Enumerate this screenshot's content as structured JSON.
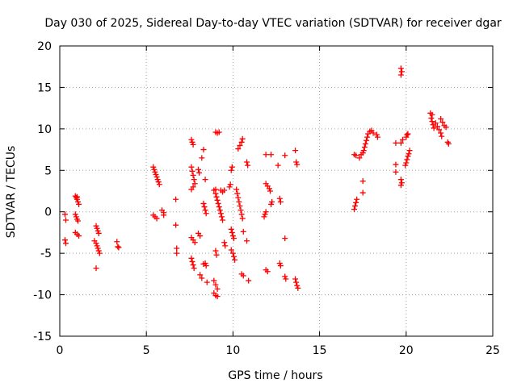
{
  "chart_data": {
    "type": "scatter",
    "title": "Day 030 of 2025, Sidereal Day-to-day VTEC variation (SDTVAR) for receiver dgar",
    "xlabel": "GPS time / hours",
    "ylabel": "SDTVAR / TECUs",
    "xlim": [
      0,
      25
    ],
    "ylim": [
      -15,
      20
    ],
    "xticks": [
      0,
      5,
      10,
      15,
      20,
      25
    ],
    "yticks": [
      -15,
      -10,
      -5,
      0,
      5,
      10,
      15,
      20
    ],
    "xtick_labels": [
      "0",
      "5",
      "10",
      "15",
      "20",
      "25"
    ],
    "ytick_labels": [
      "-15",
      "-10",
      "-5",
      "0",
      "5",
      "10",
      "15",
      "20"
    ],
    "grid": true,
    "marker": "+",
    "color": "#ff0000",
    "series": [
      {
        "name": "SDTVAR",
        "points": [
          [
            0.3,
            -0.3
          ],
          [
            0.35,
            -1.0
          ],
          [
            0.3,
            -3.4
          ],
          [
            0.35,
            -3.8
          ],
          [
            0.9,
            1.9
          ],
          [
            0.95,
            1.7
          ],
          [
            1.0,
            1.5
          ],
          [
            1.05,
            1.2
          ],
          [
            1.1,
            0.9
          ],
          [
            1.0,
            1.8
          ],
          [
            0.9,
            -0.3
          ],
          [
            0.95,
            -0.6
          ],
          [
            1.0,
            -0.9
          ],
          [
            1.05,
            -1.1
          ],
          [
            0.9,
            -2.5
          ],
          [
            1.0,
            -2.7
          ],
          [
            1.1,
            -2.9
          ],
          [
            2.1,
            -1.7
          ],
          [
            2.15,
            -2.0
          ],
          [
            2.2,
            -2.3
          ],
          [
            2.25,
            -2.6
          ],
          [
            2.0,
            -3.5
          ],
          [
            2.1,
            -3.8
          ],
          [
            2.15,
            -4.1
          ],
          [
            2.2,
            -4.4
          ],
          [
            2.25,
            -4.7
          ],
          [
            2.3,
            -5.0
          ],
          [
            2.1,
            -6.8
          ],
          [
            3.3,
            -3.6
          ],
          [
            3.35,
            -4.2
          ],
          [
            3.4,
            -4.3
          ],
          [
            5.4,
            5.4
          ],
          [
            5.45,
            5.1
          ],
          [
            5.5,
            4.8
          ],
          [
            5.55,
            4.5
          ],
          [
            5.6,
            4.2
          ],
          [
            5.65,
            3.9
          ],
          [
            5.7,
            3.6
          ],
          [
            5.75,
            3.3
          ],
          [
            5.4,
            -0.4
          ],
          [
            5.5,
            -0.6
          ],
          [
            5.6,
            -0.8
          ],
          [
            5.9,
            0.2
          ],
          [
            6.0,
            -0.1
          ],
          [
            6.0,
            -0.4
          ],
          [
            6.7,
            1.5
          ],
          [
            6.7,
            -1.6
          ],
          [
            6.75,
            -4.4
          ],
          [
            6.75,
            -5.0
          ],
          [
            7.6,
            8.7
          ],
          [
            7.65,
            8.4
          ],
          [
            7.7,
            8.1
          ],
          [
            7.6,
            5.4
          ],
          [
            7.65,
            4.9
          ],
          [
            7.7,
            4.4
          ],
          [
            7.75,
            3.9
          ],
          [
            7.8,
            3.4
          ],
          [
            7.7,
            3.0
          ],
          [
            7.6,
            2.7
          ],
          [
            7.6,
            -3.1
          ],
          [
            7.7,
            -3.4
          ],
          [
            7.8,
            -3.7
          ],
          [
            7.6,
            -5.6
          ],
          [
            7.65,
            -6.0
          ],
          [
            7.7,
            -6.4
          ],
          [
            7.75,
            -6.8
          ],
          [
            8.0,
            5.1
          ],
          [
            8.05,
            4.7
          ],
          [
            8.0,
            -2.6
          ],
          [
            8.1,
            -2.9
          ],
          [
            8.1,
            -7.6
          ],
          [
            8.2,
            -8.0
          ],
          [
            8.2,
            6.5
          ],
          [
            8.3,
            7.5
          ],
          [
            8.4,
            3.9
          ],
          [
            8.3,
            1.0
          ],
          [
            8.35,
            0.6
          ],
          [
            8.4,
            0.2
          ],
          [
            8.45,
            -0.2
          ],
          [
            8.4,
            -6.2
          ],
          [
            8.45,
            -6.5
          ],
          [
            8.5,
            -8.5
          ],
          [
            8.3,
            -6.3
          ],
          [
            9.0,
            9.6
          ],
          [
            9.1,
            9.5
          ],
          [
            9.2,
            9.6
          ],
          [
            8.9,
            2.6
          ],
          [
            9.0,
            2.2
          ],
          [
            9.05,
            1.8
          ],
          [
            9.1,
            1.4
          ],
          [
            9.15,
            1.0
          ],
          [
            9.2,
            0.6
          ],
          [
            9.25,
            0.2
          ],
          [
            9.3,
            -0.2
          ],
          [
            9.35,
            -0.6
          ],
          [
            9.4,
            -1.0
          ],
          [
            9.0,
            2.7
          ],
          [
            9.3,
            2.6
          ],
          [
            9.4,
            2.4
          ],
          [
            9.5,
            2.6
          ],
          [
            9.0,
            -4.7
          ],
          [
            9.05,
            -5.2
          ],
          [
            8.9,
            -8.3
          ],
          [
            9.0,
            -8.8
          ],
          [
            9.1,
            -9.3
          ],
          [
            8.9,
            -9.8
          ],
          [
            9.0,
            -10.1
          ],
          [
            9.1,
            -10.2
          ],
          [
            9.5,
            -3.7
          ],
          [
            9.55,
            -4.1
          ],
          [
            9.8,
            3.0
          ],
          [
            9.85,
            3.3
          ],
          [
            9.9,
            5.0
          ],
          [
            9.95,
            5.4
          ],
          [
            9.9,
            -2.1
          ],
          [
            9.95,
            -2.5
          ],
          [
            10.0,
            -2.9
          ],
          [
            10.05,
            -3.2
          ],
          [
            9.9,
            -4.6
          ],
          [
            10.0,
            -5.0
          ],
          [
            10.05,
            -5.4
          ],
          [
            10.1,
            -5.8
          ],
          [
            10.2,
            2.7
          ],
          [
            10.25,
            2.2
          ],
          [
            10.3,
            1.7
          ],
          [
            10.35,
            1.2
          ],
          [
            10.4,
            0.7
          ],
          [
            10.45,
            0.2
          ],
          [
            10.5,
            -0.3
          ],
          [
            10.55,
            -0.8
          ],
          [
            10.3,
            7.6
          ],
          [
            10.4,
            8.0
          ],
          [
            10.5,
            8.4
          ],
          [
            10.55,
            8.8
          ],
          [
            10.6,
            -2.4
          ],
          [
            10.5,
            -7.5
          ],
          [
            10.6,
            -7.7
          ],
          [
            10.8,
            6.0
          ],
          [
            10.85,
            5.6
          ],
          [
            10.8,
            -3.5
          ],
          [
            10.9,
            -8.3
          ],
          [
            11.9,
            6.9
          ],
          [
            12.2,
            6.9
          ],
          [
            11.8,
            -0.6
          ],
          [
            11.85,
            -0.3
          ],
          [
            11.9,
            0.0
          ],
          [
            11.9,
            3.4
          ],
          [
            12.0,
            3.1
          ],
          [
            12.1,
            2.8
          ],
          [
            12.15,
            2.5
          ],
          [
            11.9,
            -7.0
          ],
          [
            12.0,
            -7.2
          ],
          [
            12.2,
            0.9
          ],
          [
            12.25,
            1.2
          ],
          [
            12.6,
            5.6
          ],
          [
            12.7,
            1.6
          ],
          [
            12.75,
            1.2
          ],
          [
            12.7,
            -6.2
          ],
          [
            12.75,
            -6.5
          ],
          [
            13.0,
            6.8
          ],
          [
            13.0,
            -3.2
          ],
          [
            13.0,
            -7.8
          ],
          [
            13.05,
            -8.1
          ],
          [
            13.6,
            7.4
          ],
          [
            13.65,
            6.0
          ],
          [
            13.7,
            5.7
          ],
          [
            13.6,
            -8.1
          ],
          [
            13.65,
            -8.5
          ],
          [
            13.7,
            -8.9
          ],
          [
            13.75,
            -9.2
          ],
          [
            17.0,
            0.3
          ],
          [
            17.05,
            0.7
          ],
          [
            17.1,
            1.1
          ],
          [
            17.15,
            1.5
          ],
          [
            17.0,
            6.9
          ],
          [
            17.1,
            6.8
          ],
          [
            17.3,
            6.5
          ],
          [
            17.4,
            6.9
          ],
          [
            17.5,
            7.1
          ],
          [
            17.55,
            7.4
          ],
          [
            17.6,
            7.8
          ],
          [
            17.65,
            8.2
          ],
          [
            17.7,
            8.6
          ],
          [
            17.75,
            9.0
          ],
          [
            17.8,
            9.4
          ],
          [
            17.9,
            9.7
          ],
          [
            18.0,
            9.8
          ],
          [
            18.1,
            9.5
          ],
          [
            18.3,
            9.3
          ],
          [
            18.35,
            9.0
          ],
          [
            17.5,
            3.7
          ],
          [
            17.5,
            2.3
          ],
          [
            19.4,
            8.3
          ],
          [
            19.4,
            5.7
          ],
          [
            19.4,
            4.8
          ],
          [
            19.7,
            8.3
          ],
          [
            19.8,
            8.7
          ],
          [
            19.7,
            3.9
          ],
          [
            19.75,
            3.5
          ],
          [
            19.7,
            3.2
          ],
          [
            19.7,
            17.3
          ],
          [
            19.75,
            16.9
          ],
          [
            19.7,
            16.5
          ],
          [
            20.0,
            9.0
          ],
          [
            20.05,
            9.3
          ],
          [
            20.1,
            9.4
          ],
          [
            19.95,
            5.6
          ],
          [
            20.0,
            5.9
          ],
          [
            20.05,
            6.3
          ],
          [
            20.1,
            6.7
          ],
          [
            20.15,
            7.0
          ],
          [
            20.2,
            7.4
          ],
          [
            21.4,
            11.9
          ],
          [
            21.5,
            11.7
          ],
          [
            21.45,
            11.3
          ],
          [
            21.5,
            10.9
          ],
          [
            21.55,
            10.5
          ],
          [
            21.6,
            10.1
          ],
          [
            21.7,
            10.7
          ],
          [
            21.8,
            10.3
          ],
          [
            21.9,
            9.9
          ],
          [
            22.0,
            9.5
          ],
          [
            22.05,
            9.1
          ],
          [
            22.0,
            11.2
          ],
          [
            22.1,
            10.8
          ],
          [
            22.2,
            10.4
          ],
          [
            22.3,
            10.2
          ],
          [
            22.4,
            8.4
          ],
          [
            22.45,
            8.2
          ]
        ]
      }
    ]
  }
}
